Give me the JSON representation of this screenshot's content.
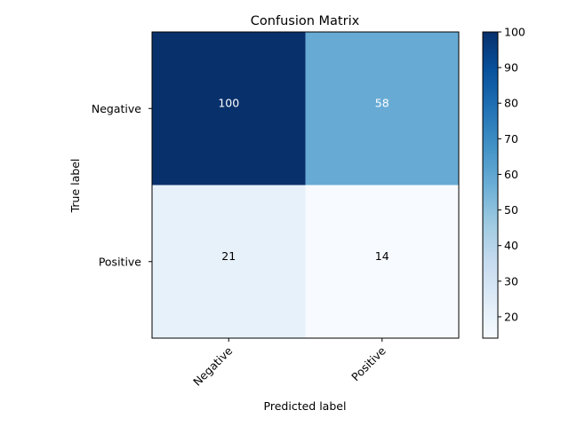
{
  "chart_data": {
    "type": "heatmap",
    "title": "Confusion Matrix",
    "xlabel": "Predicted label",
    "ylabel": "True label",
    "x_categories": [
      "Negative",
      "Positive"
    ],
    "y_categories": [
      "Negative",
      "Positive"
    ],
    "values": [
      [
        100,
        58
      ],
      [
        21,
        14
      ]
    ],
    "colormap": "Blues",
    "colorbar": {
      "min": 14,
      "max": 100,
      "ticks": [
        20,
        30,
        40,
        50,
        60,
        70,
        80,
        90,
        100
      ]
    },
    "colors": {
      "low": "#f7fbff",
      "high": "#08306b",
      "text_on_dark": "#ffffff",
      "text_on_light": "#000000"
    },
    "grid": false
  }
}
